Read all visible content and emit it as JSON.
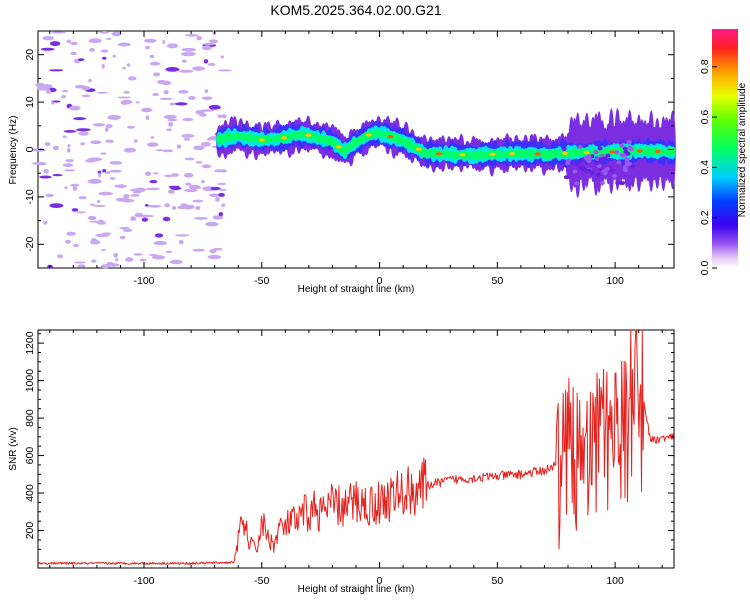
{
  "title": "KOM5.2025.364.02.00.G21",
  "colors": {
    "ridge_start": "#00e6e6",
    "ridge_mid": "#00ff66",
    "ridge_peak": "#ffcc00",
    "noise": "#c9a8f0",
    "noise_dark": "#7a2ee0",
    "snr_line": "#e8201c"
  },
  "chart_data": [
    {
      "type": "heatmap",
      "xlabel": "Height of straight line (km)",
      "ylabel": "Frequency (Hz)",
      "xlim": [
        -145,
        125
      ],
      "ylim": [
        -25,
        25
      ],
      "xticks": [
        -100,
        -50,
        0,
        50,
        100
      ],
      "yticks": [
        -20,
        -10,
        0,
        10,
        20
      ],
      "noise_region_x": [
        -145,
        -65
      ],
      "ridge": {
        "x": [
          -68,
          -60,
          -50,
          -40,
          -35,
          -30,
          -25,
          -20,
          -15,
          -10,
          -5,
          0,
          10,
          20,
          30,
          40,
          50,
          60,
          70,
          80,
          90,
          100,
          110,
          125
        ],
        "y": [
          2.2,
          2.8,
          2,
          2.5,
          3.2,
          3,
          2.2,
          1.8,
          -0.5,
          1.5,
          3,
          3.5,
          1.8,
          -0.8,
          -1,
          -1.2,
          -1,
          -0.8,
          -1,
          -0.8,
          -0.6,
          -0.5,
          -0.3,
          -0.5
        ]
      },
      "colorbar": {
        "label": "Normalized spectral amplitude",
        "range": [
          0,
          0.95
        ],
        "ticks": [
          0.0,
          0.2,
          0.4,
          0.6,
          0.8
        ]
      }
    },
    {
      "type": "line",
      "xlabel": "Height of straight line (km)",
      "ylabel": "SNR (v/v)",
      "xlim": [
        -145,
        125
      ],
      "ylim": [
        0,
        1270
      ],
      "xticks": [
        -100,
        -50,
        0,
        50,
        100
      ],
      "yticks": [
        200,
        400,
        600,
        800,
        1000,
        1200
      ],
      "series": [
        {
          "name": "SNR",
          "x": [
            -145,
            -120,
            -100,
            -80,
            -62,
            -60,
            -58,
            -55,
            -52,
            -50,
            -48,
            -45,
            -42,
            -40,
            -38,
            -35,
            -32,
            -30,
            -28,
            -25,
            -20,
            -15,
            -10,
            -5,
            0,
            10,
            20,
            30,
            40,
            50,
            60,
            65,
            70,
            75,
            80,
            85,
            90,
            95,
            100,
            103,
            105,
            107,
            108,
            109,
            110,
            112,
            115,
            120,
            125
          ],
          "y": [
            25,
            25,
            25,
            25,
            30,
            150,
            250,
            130,
            100,
            250,
            180,
            120,
            230,
            200,
            260,
            230,
            300,
            280,
            320,
            290,
            340,
            320,
            360,
            330,
            350,
            400,
            440,
            470,
            480,
            490,
            500,
            510,
            520,
            550,
            650,
            600,
            700,
            650,
            650,
            700,
            800,
            900,
            700,
            1250,
            750,
            900,
            680,
            690,
            700
          ]
        }
      ]
    }
  ]
}
